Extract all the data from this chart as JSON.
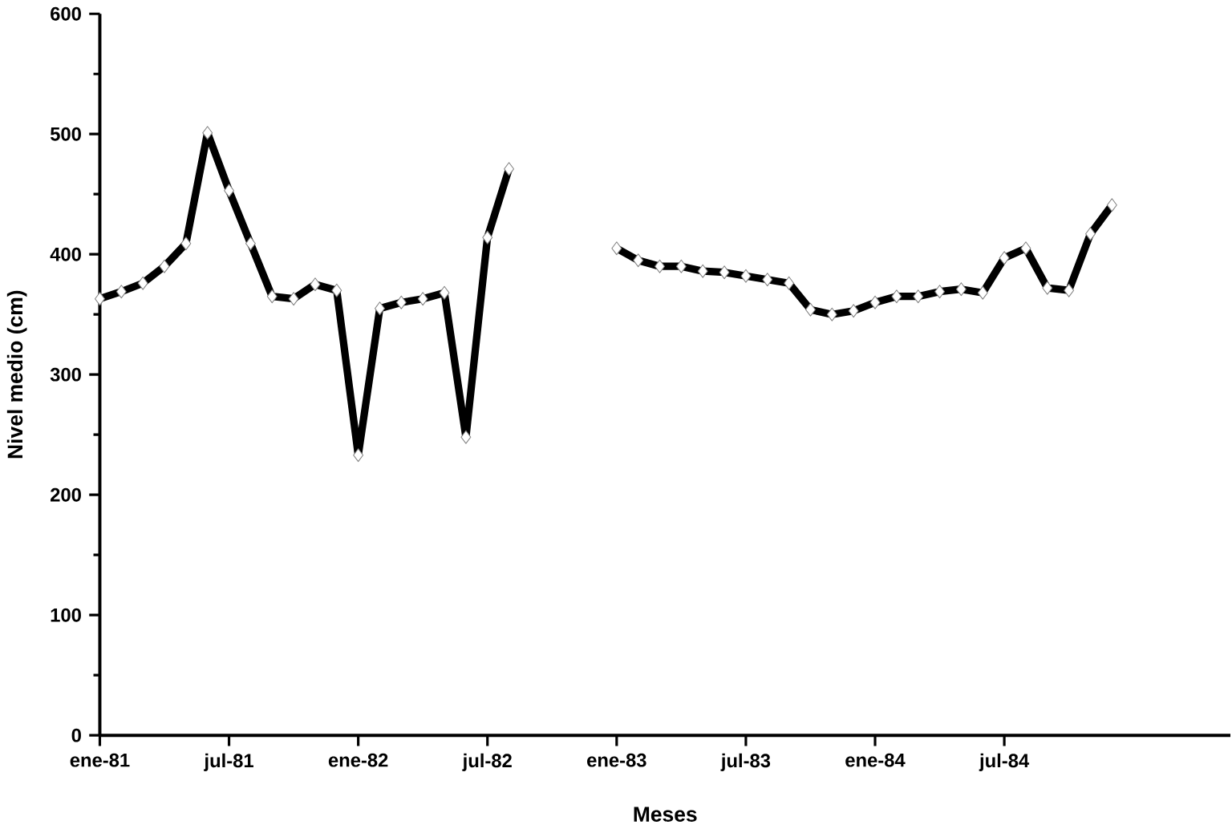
{
  "chart_data": {
    "type": "line",
    "xlabel": "Meses",
    "ylabel": "Nivel medio (cm)",
    "categories": [
      "ene-81",
      null,
      null,
      null,
      null,
      null,
      "jul-81",
      null,
      null,
      null,
      null,
      null,
      "ene-82",
      null,
      null,
      null,
      null,
      null,
      "jul-82",
      null,
      null,
      null,
      null,
      null,
      "ene-83",
      null,
      null,
      null,
      null,
      null,
      "jul-83",
      null,
      null,
      null,
      null,
      null,
      "ene-84",
      null,
      null,
      null,
      null,
      null,
      "jul-84",
      null,
      null,
      null,
      null,
      null,
      null,
      null,
      null,
      null,
      null
    ],
    "series": [
      {
        "color": "#000000",
        "values": [
          363,
          369,
          376,
          390,
          409,
          501,
          453,
          409,
          365,
          363,
          375,
          370,
          233,
          355,
          360,
          363,
          368,
          248,
          414,
          471,
          null,
          null,
          null,
          null,
          405,
          395,
          390,
          390,
          386,
          385,
          382,
          379,
          376,
          354,
          350,
          353,
          360,
          365,
          365,
          369,
          371,
          368,
          397,
          405,
          372,
          370,
          417,
          441,
          null,
          null,
          null,
          null,
          null
        ]
      }
    ],
    "ylim": [
      0,
      600
    ],
    "yticks": [
      0,
      100,
      200,
      300,
      400,
      500,
      600
    ],
    "grid": false,
    "marker": "diamond",
    "line_style": "solid"
  }
}
